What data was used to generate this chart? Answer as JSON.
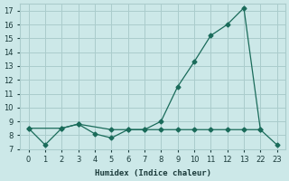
{
  "xlabel": "Humidex (Indice chaleur)",
  "bg_color": "#cce8e8",
  "grid_color": "#aacccc",
  "line_color": "#1a6b5a",
  "tick_labels": [
    "0",
    "1",
    "2",
    "3",
    "4",
    "5",
    "6",
    "7",
    "8",
    "9",
    "10",
    "11",
    "12",
    "13",
    "22",
    "23"
  ],
  "series1_pos": [
    0,
    1,
    2,
    3,
    4,
    5,
    6,
    7,
    8,
    9,
    10,
    11,
    12,
    13,
    14,
    15
  ],
  "series1_y": [
    8.5,
    7.3,
    8.5,
    8.8,
    8.1,
    7.8,
    8.4,
    8.4,
    9.0,
    11.5,
    13.3,
    15.2,
    16.0,
    17.2,
    8.4,
    7.3
  ],
  "series2_pos": [
    0,
    2,
    3,
    5,
    6,
    7,
    8,
    9,
    10,
    11,
    12,
    13,
    14
  ],
  "series2_y": [
    8.5,
    8.5,
    8.8,
    8.4,
    8.4,
    8.4,
    8.4,
    8.4,
    8.4,
    8.4,
    8.4,
    8.4,
    8.4
  ],
  "ylim": [
    7.0,
    17.5
  ],
  "yticks": [
    7,
    8,
    9,
    10,
    11,
    12,
    13,
    14,
    15,
    16,
    17
  ],
  "marker_size": 2.5,
  "linewidth": 0.9
}
